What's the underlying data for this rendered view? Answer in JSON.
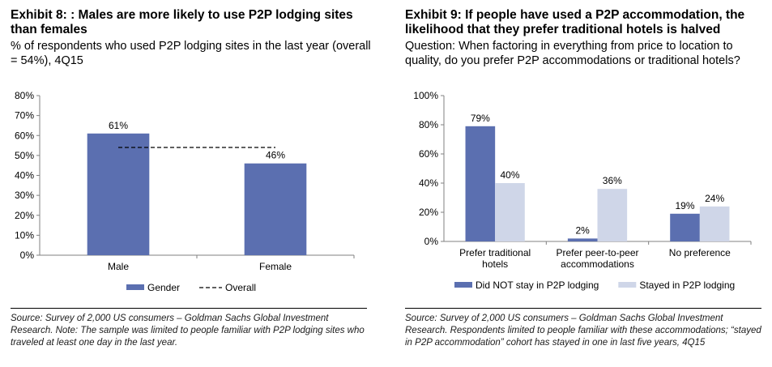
{
  "left": {
    "title": "Exhibit 8: : Males are more likely to use P2P lodging sites than females",
    "subtitle": "% of respondents who used P2P lodging sites in the last year (overall = 54%), 4Q15",
    "source": "Source: Survey of 2,000 US consumers – Goldman Sachs Global Investment Research. Note: The sample was limited to people familiar with P2P lodging sites who traveled at least one day in the last year."
  },
  "right": {
    "title": "Exhibit 9: If people have used a P2P accommodation, the likelihood that they prefer traditional hotels is halved",
    "subtitle": "Question: When factoring in everything from price to location to quality, do you prefer P2P accommodations or traditional hotels?",
    "source": "Source: Survey of 2,000 US consumers – Goldman Sachs Global Investment Research. Respondents limited to people familiar with these accommodations; “stayed in P2P accommodation” cohort has stayed in one in last five years, 4Q15"
  },
  "chart_data": [
    {
      "type": "bar",
      "categories": [
        "Male",
        "Female"
      ],
      "series": [
        {
          "name": "Gender",
          "values": [
            61,
            46
          ],
          "labels": [
            "61%",
            "46%"
          ],
          "color": "#5b6fb0"
        }
      ],
      "reference_line": {
        "name": "Overall",
        "value": 54,
        "style": "dashed"
      },
      "ylim": [
        0,
        80
      ],
      "yticks": [
        "0%",
        "10%",
        "20%",
        "30%",
        "40%",
        "50%",
        "60%",
        "70%",
        "80%"
      ],
      "legend_placement": "bottom",
      "grid": false
    },
    {
      "type": "bar",
      "categories": [
        [
          "Prefer traditional",
          "hotels"
        ],
        [
          "Prefer peer-to-peer",
          "accommodations"
        ],
        [
          "No preference"
        ]
      ],
      "series": [
        {
          "name": "Did NOT stay in P2P lodging",
          "values": [
            79,
            2,
            19
          ],
          "labels": [
            "79%",
            "2%",
            "19%"
          ],
          "color": "#5b6fb0"
        },
        {
          "name": "Stayed in P2P lodging",
          "values": [
            40,
            36,
            24
          ],
          "labels": [
            "40%",
            "36%",
            "24%"
          ],
          "color": "#cfd6e8"
        }
      ],
      "ylim": [
        0,
        100
      ],
      "yticks": [
        "0%",
        "20%",
        "40%",
        "60%",
        "80%",
        "100%"
      ],
      "legend_placement": "bottom",
      "grid": false
    }
  ]
}
